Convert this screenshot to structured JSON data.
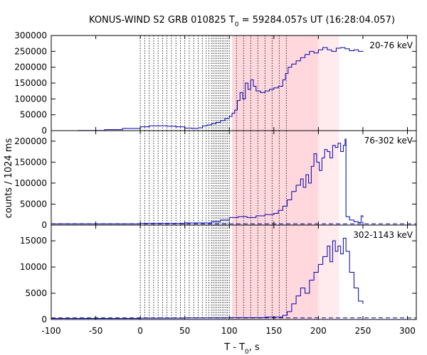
{
  "chart_data": {
    "type": "line",
    "title": "KONUS-WIND S2 GRB 010825 T",
    "title_sub": "0",
    "title_rest": " = 59284.057s UT (16:28:04.057)",
    "xlabel": "T - T",
    "xlabel_sub": "0",
    "xlabel_rest": ", s",
    "ylabel": "counts / 1024 ms",
    "xlim": [
      -100,
      310
    ],
    "x_ticks": [
      "-100",
      "-50",
      "0",
      "50",
      "100",
      "150",
      "200",
      "250",
      "300"
    ],
    "x_tick_values": [
      -100,
      -50,
      0,
      50,
      100,
      150,
      200,
      250,
      300
    ],
    "line_color": "#0000aa",
    "shade_dark": {
      "from": 103,
      "to": 200,
      "color": "#ffd8de"
    },
    "shade_light": {
      "from": 200,
      "to": 223,
      "color": "#ffeaee"
    },
    "time_markers": [
      0,
      5,
      10,
      15,
      20,
      25,
      30,
      35,
      40,
      45,
      50,
      55,
      60,
      65,
      70,
      74,
      77,
      80,
      82,
      84,
      86,
      88,
      90,
      92,
      94,
      96,
      98,
      100,
      108,
      116,
      124,
      132,
      140,
      148,
      156,
      164
    ],
    "panels": [
      {
        "label": "20-76 keV",
        "ylim": [
          0,
          300000
        ],
        "y_ticks": [
          "0",
          "50000",
          "100000",
          "150000",
          "200000",
          "250000",
          "300000"
        ],
        "y_tick_values": [
          0,
          50000,
          100000,
          150000,
          200000,
          250000,
          300000
        ],
        "background_level": 0,
        "points": [
          [
            -70,
            500
          ],
          [
            -40,
            3000
          ],
          [
            -20,
            7000
          ],
          [
            0,
            12000
          ],
          [
            10,
            15000
          ],
          [
            20,
            15500
          ],
          [
            30,
            14000
          ],
          [
            40,
            12000
          ],
          [
            50,
            8000
          ],
          [
            58,
            7000
          ],
          [
            65,
            9000
          ],
          [
            70,
            15000
          ],
          [
            75,
            18000
          ],
          [
            80,
            22000
          ],
          [
            85,
            26000
          ],
          [
            90,
            32000
          ],
          [
            95,
            38000
          ],
          [
            100,
            45000
          ],
          [
            103,
            55000
          ],
          [
            106,
            65000
          ],
          [
            109,
            95000
          ],
          [
            112,
            120000
          ],
          [
            115,
            100000
          ],
          [
            118,
            150000
          ],
          [
            121,
            130000
          ],
          [
            124,
            160000
          ],
          [
            127,
            140000
          ],
          [
            130,
            125000
          ],
          [
            135,
            120000
          ],
          [
            140,
            125000
          ],
          [
            145,
            130000
          ],
          [
            150,
            135000
          ],
          [
            155,
            140000
          ],
          [
            160,
            160000
          ],
          [
            163,
            180000
          ],
          [
            166,
            200000
          ],
          [
            170,
            210000
          ],
          [
            175,
            220000
          ],
          [
            180,
            230000
          ],
          [
            185,
            240000
          ],
          [
            190,
            250000
          ],
          [
            195,
            245000
          ],
          [
            200,
            255000
          ],
          [
            205,
            262000
          ],
          [
            210,
            255000
          ],
          [
            215,
            250000
          ],
          [
            220,
            260000
          ],
          [
            225,
            262000
          ],
          [
            230,
            258000
          ],
          [
            235,
            252000
          ],
          [
            240,
            255000
          ],
          [
            245,
            250000
          ],
          [
            250,
            252000
          ]
        ]
      },
      {
        "label": "76-302 keV",
        "ylim": [
          0,
          225000
        ],
        "y_ticks": [
          "0",
          "50000",
          "100000",
          "150000",
          "200000"
        ],
        "y_tick_values": [
          0,
          50000,
          100000,
          150000,
          200000
        ],
        "background_level": 3000,
        "points": [
          [
            -100,
            3000
          ],
          [
            0,
            4000
          ],
          [
            50,
            5000
          ],
          [
            80,
            8000
          ],
          [
            90,
            12000
          ],
          [
            100,
            18000
          ],
          [
            110,
            20000
          ],
          [
            120,
            18000
          ],
          [
            130,
            22000
          ],
          [
            140,
            25000
          ],
          [
            150,
            28000
          ],
          [
            155,
            35000
          ],
          [
            160,
            45000
          ],
          [
            165,
            60000
          ],
          [
            170,
            80000
          ],
          [
            175,
            95000
          ],
          [
            180,
            110000
          ],
          [
            183,
            90000
          ],
          [
            186,
            120000
          ],
          [
            189,
            100000
          ],
          [
            192,
            140000
          ],
          [
            195,
            170000
          ],
          [
            198,
            150000
          ],
          [
            201,
            130000
          ],
          [
            204,
            160000
          ],
          [
            207,
            180000
          ],
          [
            210,
            175000
          ],
          [
            213,
            160000
          ],
          [
            216,
            190000
          ],
          [
            219,
            185000
          ],
          [
            222,
            195000
          ],
          [
            225,
            175000
          ],
          [
            228,
            190000
          ],
          [
            230,
            205000
          ],
          [
            231,
            20000
          ],
          [
            235,
            12000
          ],
          [
            240,
            8000
          ],
          [
            245,
            6000
          ],
          [
            248,
            22000
          ],
          [
            250,
            18000
          ]
        ]
      },
      {
        "label": "302-1143 keV",
        "ylim": [
          0,
          18000
        ],
        "y_ticks": [
          "0",
          "5000",
          "10000",
          "15000"
        ],
        "y_tick_values": [
          0,
          5000,
          10000,
          15000
        ],
        "background_level": 300,
        "points": [
          [
            -100,
            200
          ],
          [
            0,
            250
          ],
          [
            50,
            300
          ],
          [
            100,
            350
          ],
          [
            140,
            450
          ],
          [
            160,
            800
          ],
          [
            165,
            1500
          ],
          [
            170,
            3000
          ],
          [
            175,
            4500
          ],
          [
            180,
            6000
          ],
          [
            185,
            5000
          ],
          [
            190,
            7500
          ],
          [
            195,
            9000
          ],
          [
            200,
            10500
          ],
          [
            205,
            12000
          ],
          [
            210,
            14000
          ],
          [
            213,
            11000
          ],
          [
            216,
            15000
          ],
          [
            219,
            13000
          ],
          [
            222,
            14000
          ],
          [
            225,
            12500
          ],
          [
            228,
            15500
          ],
          [
            231,
            13000
          ],
          [
            235,
            9000
          ],
          [
            240,
            6000
          ],
          [
            245,
            3500
          ],
          [
            250,
            3000
          ]
        ]
      }
    ]
  }
}
